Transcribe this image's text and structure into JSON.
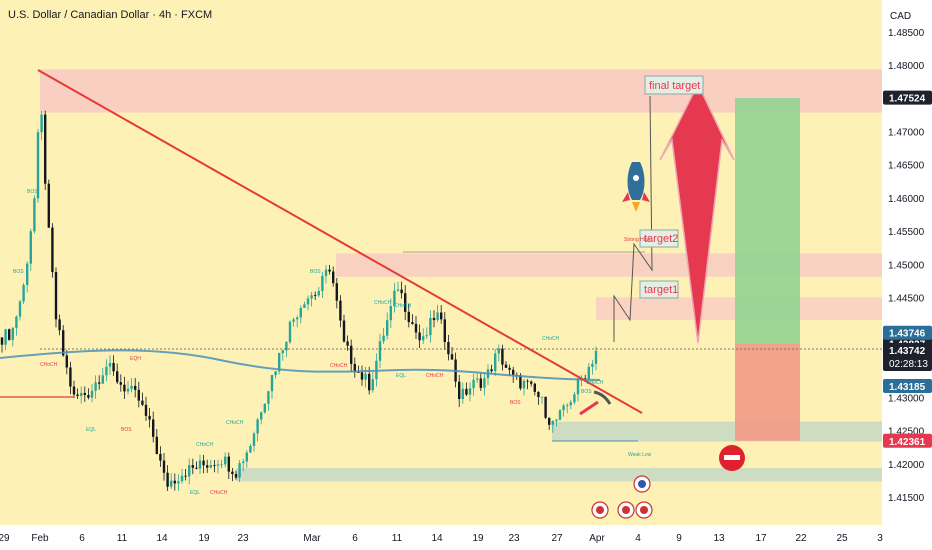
{
  "header": {
    "title": "U.S. Dollar / Canadian Dollar · 4h · FXCM",
    "currency": "CAD"
  },
  "colors": {
    "background": "#fdf1b5",
    "bull": "#26a69a",
    "bear": "#131722",
    "resistance_zone": "#f8c9c4",
    "trendline": "#e53935",
    "ma": "#4a90b8",
    "tp_zone": "#93d392",
    "sl_zone": "#f39a86",
    "support_zone": "#c9d9c3",
    "arrow": "#e53950"
  },
  "chart_data": {
    "type": "candlestick",
    "symbol": "USDCAD",
    "timeframe": "4h",
    "ylim": [
      1.4125,
      1.4865
    ],
    "y_ticks": [
      "1.48500",
      "1.48000",
      "1.47500",
      "1.47000",
      "1.46500",
      "1.46000",
      "1.45500",
      "1.45000",
      "1.44500",
      "1.44000",
      "1.43500",
      "1.43000",
      "1.42500",
      "1.42000",
      "1.41500"
    ],
    "x_ticks": [
      "29",
      "Feb",
      "6",
      "11",
      "14",
      "19",
      "23",
      "Mar",
      "6",
      "11",
      "14",
      "19",
      "23",
      "27",
      "Apr",
      "4",
      "9",
      "13",
      "17",
      "22",
      "25",
      "3"
    ],
    "price_labels": [
      {
        "text": "1.47524",
        "value": 1.47524,
        "style": "dark"
      },
      {
        "text": "1.43827",
        "value": 1.43827,
        "style": "dark"
      },
      {
        "text": "1.43746",
        "value": 1.43746,
        "style": "blue"
      },
      {
        "text": "1.43742",
        "value": 1.43742,
        "style": "dark",
        "countdown": "02:28:13"
      },
      {
        "text": "1.43185",
        "value": 1.43185,
        "style": "blue"
      },
      {
        "text": "1.42361",
        "value": 1.42361,
        "style": "red"
      }
    ],
    "zones": [
      {
        "name": "resistance-top",
        "from": 1.473,
        "to": 1.4795
      },
      {
        "name": "resistance-mid",
        "from": 1.4483,
        "to": 1.4518
      },
      {
        "name": "resistance-low",
        "from": 1.4418,
        "to": 1.4452
      },
      {
        "name": "support-low",
        "from": 1.4175,
        "to": 1.4195
      },
      {
        "name": "support-entry",
        "from": 1.4235,
        "to": 1.4265
      }
    ],
    "annotations": {
      "final_target": "final target",
      "target2": "target2",
      "target1": "target1",
      "strong_high": "Strong High",
      "weak_low": "Weak Low",
      "labels": [
        "BOS",
        "BOS",
        "CHoCH",
        "EQH",
        "EQL",
        "BOS",
        "CHoCH",
        "CHoCH",
        "EQL",
        "CHoCH",
        "BOS",
        "CHoCH",
        "CHoCH",
        "CHoCH",
        "EQL",
        "CHoCH",
        "BOS",
        "CHoCH",
        "BOS",
        "CHoCH"
      ]
    }
  }
}
